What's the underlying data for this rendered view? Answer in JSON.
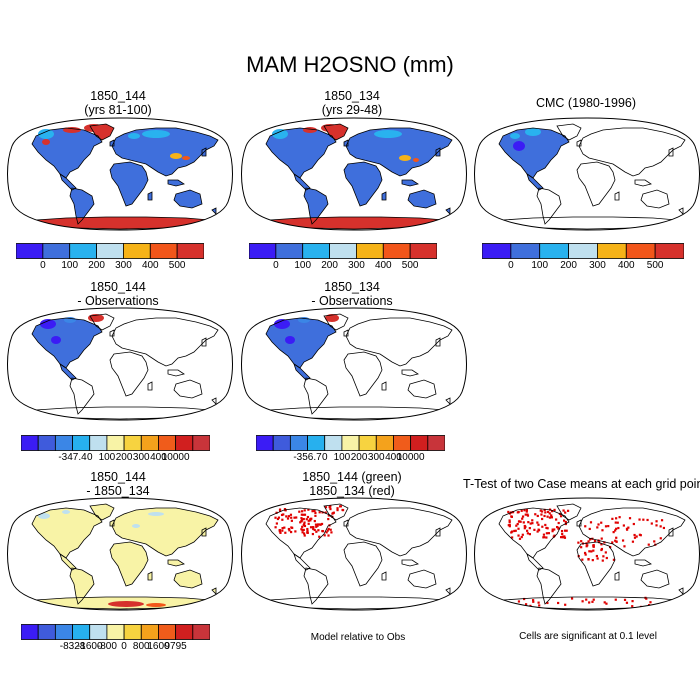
{
  "figure": {
    "title": "MAM H2OSNO (mm)"
  },
  "panels": [
    {
      "id": "p1",
      "title_line1": "1850_144",
      "title_line2": "(yrs 81-100)"
    },
    {
      "id": "p2",
      "title_line1": "1850_134",
      "title_line2": "(yrs 29-48)"
    },
    {
      "id": "p3",
      "title_line1": "CMC (1980-1996)",
      "title_line2": ""
    },
    {
      "id": "p4",
      "title_line1": "1850_144",
      "title_line2": "- Observations"
    },
    {
      "id": "p5",
      "title_line1": "1850_134",
      "title_line2": "- Observations"
    },
    {
      "id": "p7",
      "title_line1": "1850_144",
      "title_line2": "- 1850_134"
    },
    {
      "id": "p8",
      "title_line1": "1850_144 (green)",
      "title_line2": "1850_134 (red)"
    },
    {
      "id": "p9",
      "title_line1": "T-Test of two Case means at each grid point",
      "title_line2": ""
    }
  ],
  "notes": {
    "model_relative": "Model relative to Obs",
    "cells_significant": "Cells are significant at 0.1 level"
  },
  "chart_data": [
    {
      "type": "heatmap",
      "panel": "1850_144 (yrs 81-100)",
      "colorbar": {
        "labels": [
          "0",
          "100",
          "200",
          "300",
          "400",
          "500"
        ],
        "colors": [
          "#3b1cf5",
          "#3f6fdc",
          "#29b2ef",
          "#bfe0ef",
          "#f6b318",
          "#f2561a",
          "#d6312c"
        ]
      }
    },
    {
      "type": "heatmap",
      "panel": "1850_134 (yrs 29-48)",
      "colorbar": {
        "labels": [
          "0",
          "100",
          "200",
          "300",
          "400",
          "500"
        ],
        "colors": [
          "#3b1cf5",
          "#3f6fdc",
          "#29b2ef",
          "#bfe0ef",
          "#f6b318",
          "#f2561a",
          "#d6312c"
        ]
      }
    },
    {
      "type": "heatmap",
      "panel": "CMC (1980-1996)",
      "colorbar": {
        "labels": [
          "0",
          "100",
          "200",
          "300",
          "400",
          "500"
        ],
        "colors": [
          "#3b1cf5",
          "#3f6fdc",
          "#29b2ef",
          "#bfe0ef",
          "#f6b318",
          "#f2561a",
          "#d6312c"
        ]
      }
    },
    {
      "type": "heatmap",
      "panel": "1850_144 - Observations",
      "colorbar": {
        "labels": [
          "-347.4",
          "0",
          "100",
          "200",
          "300",
          "400",
          "10000"
        ],
        "colors": [
          "#3b1cf5",
          "#3f5bdc",
          "#3b86e6",
          "#27b0ee",
          "#bfe0ef",
          "#f8f3a6",
          "#f7d340",
          "#f4a21c",
          "#f05c1b",
          "#d11f1f",
          "#c8343a"
        ]
      }
    },
    {
      "type": "heatmap",
      "panel": "1850_134 - Observations",
      "colorbar": {
        "labels": [
          "-356.7",
          "0",
          "100",
          "200",
          "300",
          "400",
          "10000"
        ],
        "colors": [
          "#3b1cf5",
          "#3f5bdc",
          "#3b86e6",
          "#27b0ee",
          "#bfe0ef",
          "#f8f3a6",
          "#f7d340",
          "#f4a21c",
          "#f05c1b",
          "#d11f1f",
          "#c8343a"
        ]
      }
    },
    {
      "type": "heatmap",
      "panel": "1850_144 - 1850_134",
      "colorbar": {
        "labels": [
          "-8328",
          "-1600",
          "-800",
          "0",
          "800",
          "1600",
          "9795"
        ],
        "colors": [
          "#3b1cf5",
          "#3f5bdc",
          "#3b86e6",
          "#27b0ee",
          "#bfe0ef",
          "#f8f3a6",
          "#f7d340",
          "#f4a21c",
          "#f05c1b",
          "#d11f1f",
          "#c8343a"
        ]
      }
    }
  ]
}
